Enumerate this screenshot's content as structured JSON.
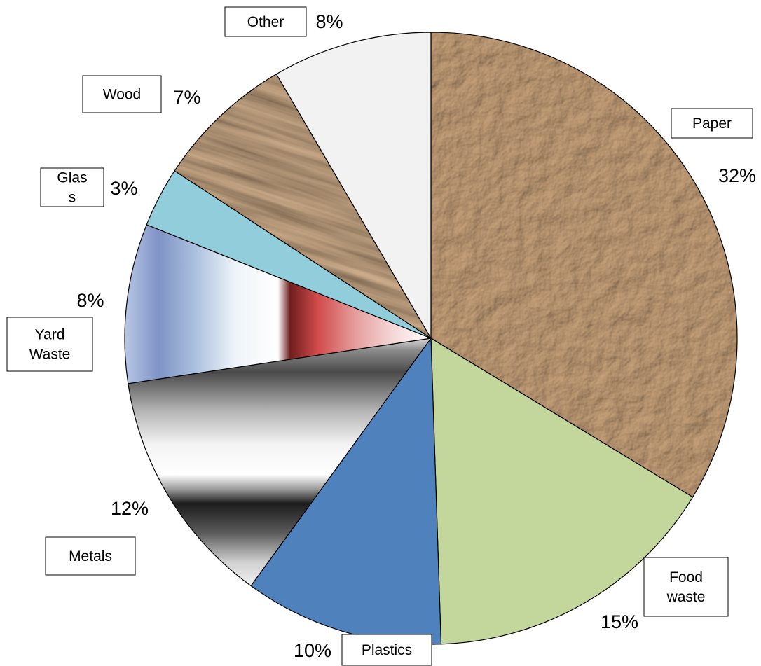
{
  "chart_data": {
    "type": "pie",
    "title": "",
    "start": "12 o'clock",
    "direction": "clockwise",
    "slices": [
      {
        "label": "Paper",
        "value": 32,
        "value_label": "32%",
        "fill": "paper-texture",
        "color": "#a98462"
      },
      {
        "label": "Food waste",
        "value": 15,
        "value_label": "15%",
        "fill": "solid",
        "color": "#c3d69b"
      },
      {
        "label": "Plastics",
        "value": 10,
        "value_label": "10%",
        "fill": "solid",
        "color": "#4f81bd"
      },
      {
        "label": "Metals",
        "value": 12,
        "value_label": "12%",
        "fill": "metal-gradient",
        "color": "#8c8c8c"
      },
      {
        "label": "Yard Waste",
        "value": 8,
        "value_label": "8%",
        "fill": "blue-red-gradient",
        "color": "#8f9fcb"
      },
      {
        "label": "Glass",
        "value": 3,
        "value_label": "3%",
        "fill": "solid",
        "color": "#92cddc"
      },
      {
        "label": "Wood",
        "value": 7,
        "value_label": "7%",
        "fill": "wood-texture",
        "color": "#4a3222"
      },
      {
        "label": "Other",
        "value": 8,
        "value_label": "8%",
        "fill": "solid",
        "color": "#f2f2f2"
      }
    ],
    "label_text": {
      "Paper": [
        "Paper"
      ],
      "Food waste": [
        "Food",
        "waste"
      ],
      "Plastics": [
        "Plastics"
      ],
      "Metals": [
        "Metals"
      ],
      "Yard Waste": [
        "Yard",
        "Waste"
      ],
      "Glass": [
        "Glas",
        "s"
      ],
      "Wood": [
        "Wood"
      ],
      "Other": [
        "Other"
      ]
    },
    "legend": "none",
    "labels_style": "boxed callouts outside pie"
  }
}
